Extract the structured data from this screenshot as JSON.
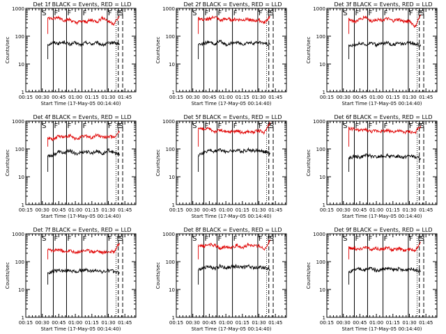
{
  "chart_data": [
    {
      "type": "line",
      "title": "Det 1f BLACK = Events, RED = LLD",
      "xlabel": "Start Time (17-May-05 00:14:40)",
      "ylabel": "Counts/sec",
      "log_y": true,
      "ylim": [
        1,
        1000
      ],
      "xlim": [
        15,
        115
      ],
      "x_tick_labels": [
        "00:15",
        "00:30",
        "00:45",
        "01:00",
        "01:15",
        "01:30",
        "01:45"
      ],
      "y_tick_labels": [
        "1",
        "10",
        "100",
        "1000"
      ],
      "series": [
        {
          "name": "Events",
          "color": "#000000",
          "x": [
            35,
            40,
            45,
            50,
            55,
            60,
            65,
            70,
            75,
            80,
            85,
            90,
            95,
            100
          ],
          "y": [
            50,
            60,
            55,
            62,
            50,
            58,
            48,
            60,
            52,
            58,
            48,
            55,
            60,
            50
          ]
        },
        {
          "name": "LLD",
          "color": "#e00000",
          "x": [
            35,
            40,
            45,
            50,
            55,
            60,
            65,
            70,
            75,
            80,
            85,
            90,
            95,
            100
          ],
          "y": [
            450,
            420,
            480,
            370,
            400,
            300,
            340,
            330,
            380,
            330,
            470,
            340,
            280,
            500
          ]
        }
      ],
      "markers": [
        {
          "x": 29,
          "label": "S"
        },
        {
          "x": 40,
          "label": "F"
        },
        {
          "x": 52,
          "label": "F"
        },
        {
          "x": 66,
          "label": "F"
        },
        {
          "x": 89,
          "label": "F"
        },
        {
          "x": 97,
          "label": "E"
        },
        {
          "x": 99,
          "label": "S"
        }
      ]
    },
    {
      "type": "line",
      "title": "Det 2f BLACK = Events, RED = LLD",
      "xlabel": "Start Time (17-May-05 00:14:40)",
      "ylabel": "Counts/sec",
      "log_y": true,
      "ylim": [
        1,
        1000
      ],
      "xlim": [
        15,
        115
      ],
      "x_tick_labels": [
        "00:15",
        "00:30",
        "00:45",
        "01:00",
        "01:15",
        "01:30",
        "01:45"
      ],
      "y_tick_labels": [
        "1",
        "10",
        "100",
        "1000"
      ],
      "series": [
        {
          "name": "Events",
          "color": "#000000",
          "x": [
            35,
            40,
            45,
            50,
            55,
            60,
            65,
            70,
            75,
            80,
            85,
            90,
            95,
            100
          ],
          "y": [
            50,
            55,
            60,
            52,
            65,
            50,
            55,
            60,
            50,
            58,
            55,
            60,
            55,
            50
          ]
        },
        {
          "name": "LLD",
          "color": "#e00000",
          "x": [
            35,
            40,
            45,
            50,
            55,
            60,
            65,
            70,
            75,
            80,
            85,
            90,
            95,
            100
          ],
          "y": [
            450,
            380,
            420,
            500,
            360,
            420,
            390,
            400,
            380,
            420,
            350,
            380,
            300,
            500
          ]
        }
      ],
      "markers": [
        {
          "x": 29,
          "label": "S"
        },
        {
          "x": 40,
          "label": "F"
        },
        {
          "x": 52,
          "label": "F"
        },
        {
          "x": 66,
          "label": "F"
        },
        {
          "x": 89,
          "label": "F"
        },
        {
          "x": 97,
          "label": "E"
        },
        {
          "x": 99,
          "label": "S"
        }
      ]
    },
    {
      "type": "line",
      "title": "Det 3f BLACK = Events, RED = LLD",
      "xlabel": "Start Time (17-May-05 00:14:40)",
      "ylabel": "Counts/sec",
      "log_y": true,
      "ylim": [
        1,
        1000
      ],
      "xlim": [
        15,
        115
      ],
      "x_tick_labels": [
        "00:15",
        "00:30",
        "00:45",
        "01:00",
        "01:15",
        "01:30",
        "01:45"
      ],
      "y_tick_labels": [
        "1",
        "10",
        "100",
        "1000"
      ],
      "series": [
        {
          "name": "Events",
          "color": "#000000",
          "x": [
            35,
            40,
            45,
            50,
            55,
            60,
            65,
            70,
            75,
            80,
            85,
            90,
            95,
            100
          ],
          "y": [
            45,
            50,
            55,
            50,
            60,
            48,
            55,
            58,
            50,
            55,
            50,
            60,
            55,
            45
          ]
        },
        {
          "name": "LLD",
          "color": "#e00000",
          "x": [
            35,
            40,
            45,
            50,
            55,
            60,
            65,
            70,
            75,
            80,
            85,
            90,
            95,
            100
          ],
          "y": [
            420,
            330,
            400,
            500,
            350,
            400,
            380,
            420,
            350,
            400,
            330,
            360,
            220,
            550
          ]
        }
      ],
      "markers": [
        {
          "x": 29,
          "label": "S"
        },
        {
          "x": 40,
          "label": "F"
        },
        {
          "x": 52,
          "label": "F"
        },
        {
          "x": 66,
          "label": "F"
        },
        {
          "x": 89,
          "label": "F"
        },
        {
          "x": 97,
          "label": "E"
        },
        {
          "x": 99,
          "label": "S"
        }
      ]
    },
    {
      "type": "line",
      "title": "Det 4f BLACK = Events, RED = LLD",
      "xlabel": "Start Time (17-May-05 00:14:40)",
      "ylabel": "Counts/sec",
      "log_y": true,
      "ylim": [
        1,
        1000
      ],
      "xlim": [
        15,
        115
      ],
      "x_tick_labels": [
        "00:15",
        "00:30",
        "00:45",
        "01:00",
        "01:15",
        "01:30",
        "01:45"
      ],
      "y_tick_labels": [
        "1",
        "10",
        "100",
        "1000"
      ],
      "series": [
        {
          "name": "Events",
          "color": "#000000",
          "x": [
            35,
            40,
            45,
            50,
            55,
            60,
            65,
            70,
            75,
            80,
            85,
            90,
            95,
            100
          ],
          "y": [
            55,
            60,
            80,
            70,
            90,
            65,
            75,
            80,
            70,
            85,
            65,
            90,
            75,
            60
          ]
        },
        {
          "name": "LLD",
          "color": "#e00000",
          "x": [
            35,
            40,
            45,
            50,
            55,
            60,
            65,
            70,
            75,
            80,
            85,
            90,
            95,
            100
          ],
          "y": [
            250,
            220,
            300,
            260,
            300,
            220,
            260,
            300,
            240,
            320,
            250,
            280,
            260,
            400
          ]
        }
      ],
      "markers": [
        {
          "x": 29,
          "label": "S"
        },
        {
          "x": 40,
          "label": "F"
        },
        {
          "x": 52,
          "label": "F"
        },
        {
          "x": 66,
          "label": "F"
        },
        {
          "x": 89,
          "label": "F"
        },
        {
          "x": 97,
          "label": "E"
        },
        {
          "x": 99,
          "label": "S"
        }
      ]
    },
    {
      "type": "line",
      "title": "Det 5f BLACK = Events, RED = LLD",
      "xlabel": "Start Time (17-May-05 00:14:40)",
      "ylabel": "Counts/sec",
      "log_y": true,
      "ylim": [
        1,
        1000
      ],
      "xlim": [
        15,
        115
      ],
      "x_tick_labels": [
        "00:15",
        "00:30",
        "00:45",
        "01:00",
        "01:15",
        "01:30",
        "01:45"
      ],
      "y_tick_labels": [
        "1",
        "10",
        "100",
        "1000"
      ],
      "series": [
        {
          "name": "Events",
          "color": "#000000",
          "x": [
            35,
            40,
            45,
            50,
            55,
            60,
            65,
            70,
            75,
            80,
            85,
            90,
            95,
            100
          ],
          "y": [
            60,
            75,
            90,
            80,
            95,
            80,
            85,
            90,
            80,
            95,
            85,
            90,
            80,
            70
          ]
        },
        {
          "name": "LLD",
          "color": "#e00000",
          "x": [
            35,
            40,
            45,
            50,
            55,
            60,
            65,
            70,
            75,
            80,
            85,
            90,
            95,
            100
          ],
          "y": [
            550,
            500,
            520,
            420,
            480,
            400,
            420,
            450,
            380,
            420,
            400,
            450,
            380,
            900
          ]
        }
      ],
      "markers": [
        {
          "x": 29,
          "label": "S"
        },
        {
          "x": 40,
          "label": "F"
        },
        {
          "x": 52,
          "label": "F"
        },
        {
          "x": 66,
          "label": "F"
        },
        {
          "x": 89,
          "label": "F"
        },
        {
          "x": 97,
          "label": "E"
        },
        {
          "x": 99,
          "label": "S"
        }
      ]
    },
    {
      "type": "line",
      "title": "Det 6f BLACK = Events, RED = LLD",
      "xlabel": "Start Time (17-May-05 00:14:40)",
      "ylabel": "Counts/sec",
      "log_y": true,
      "ylim": [
        1,
        1000
      ],
      "xlim": [
        15,
        115
      ],
      "x_tick_labels": [
        "00:15",
        "00:30",
        "00:45",
        "01:00",
        "01:15",
        "01:30",
        "01:45"
      ],
      "y_tick_labels": [
        "1",
        "10",
        "100",
        "1000"
      ],
      "series": [
        {
          "name": "Events",
          "color": "#000000",
          "x": [
            35,
            40,
            45,
            50,
            55,
            60,
            65,
            70,
            75,
            80,
            85,
            90,
            95,
            100
          ],
          "y": [
            45,
            55,
            50,
            60,
            55,
            50,
            55,
            58,
            52,
            55,
            50,
            58,
            50,
            45
          ]
        },
        {
          "name": "LLD",
          "color": "#e00000",
          "x": [
            35,
            40,
            45,
            50,
            55,
            60,
            65,
            70,
            75,
            80,
            85,
            90,
            95,
            100
          ],
          "y": [
            550,
            500,
            450,
            500,
            420,
            450,
            430,
            460,
            420,
            450,
            400,
            420,
            380,
            650
          ]
        }
      ],
      "markers": [
        {
          "x": 29,
          "label": "S"
        },
        {
          "x": 40,
          "label": "F"
        },
        {
          "x": 52,
          "label": "F"
        },
        {
          "x": 66,
          "label": "F"
        },
        {
          "x": 89,
          "label": "F"
        },
        {
          "x": 97,
          "label": "E"
        },
        {
          "x": 99,
          "label": "S"
        }
      ]
    },
    {
      "type": "line",
      "title": "Det 7f BLACK = Events, RED = LLD",
      "xlabel": "Start Time (17-May-05 00:14:40)",
      "ylabel": "Counts/sec",
      "log_y": true,
      "ylim": [
        1,
        1000
      ],
      "xlim": [
        15,
        115
      ],
      "x_tick_labels": [
        "00:15",
        "00:30",
        "00:45",
        "01:00",
        "01:15",
        "01:30",
        "01:45"
      ],
      "y_tick_labels": [
        "1",
        "10",
        "100",
        "1000"
      ],
      "series": [
        {
          "name": "Events",
          "color": "#000000",
          "x": [
            35,
            40,
            45,
            50,
            55,
            60,
            65,
            70,
            75,
            80,
            85,
            90,
            95,
            100
          ],
          "y": [
            40,
            45,
            50,
            45,
            50,
            42,
            48,
            50,
            45,
            50,
            42,
            48,
            45,
            40
          ]
        },
        {
          "name": "LLD",
          "color": "#e00000",
          "x": [
            35,
            40,
            45,
            50,
            55,
            60,
            65,
            70,
            75,
            80,
            85,
            90,
            95,
            100
          ],
          "y": [
            260,
            240,
            280,
            220,
            260,
            200,
            240,
            260,
            220,
            250,
            210,
            230,
            230,
            450
          ]
        }
      ],
      "markers": [
        {
          "x": 29,
          "label": "S"
        },
        {
          "x": 40,
          "label": "F"
        },
        {
          "x": 52,
          "label": "F"
        },
        {
          "x": 66,
          "label": "F"
        },
        {
          "x": 89,
          "label": "F"
        },
        {
          "x": 97,
          "label": "E"
        },
        {
          "x": 99,
          "label": "S"
        }
      ]
    },
    {
      "type": "line",
      "title": "Det 8f BLACK = Events, RED = LLD",
      "xlabel": "Start Time (17-May-05 00:14:40)",
      "ylabel": "Counts/sec",
      "log_y": true,
      "ylim": [
        1,
        1000
      ],
      "xlim": [
        15,
        115
      ],
      "x_tick_labels": [
        "00:15",
        "00:30",
        "00:45",
        "01:00",
        "01:15",
        "01:30",
        "01:45"
      ],
      "y_tick_labels": [
        "1",
        "10",
        "100",
        "1000"
      ],
      "series": [
        {
          "name": "Events",
          "color": "#000000",
          "x": [
            35,
            40,
            45,
            50,
            55,
            60,
            65,
            70,
            75,
            80,
            85,
            90,
            95,
            100
          ],
          "y": [
            50,
            60,
            65,
            55,
            70,
            60,
            65,
            70,
            60,
            70,
            60,
            65,
            60,
            50
          ]
        },
        {
          "name": "LLD",
          "color": "#e00000",
          "x": [
            35,
            40,
            45,
            50,
            55,
            60,
            65,
            70,
            75,
            80,
            85,
            90,
            95,
            100
          ],
          "y": [
            400,
            350,
            420,
            380,
            300,
            350,
            330,
            380,
            320,
            400,
            360,
            380,
            260,
            600
          ]
        }
      ],
      "markers": [
        {
          "x": 29,
          "label": "S"
        },
        {
          "x": 40,
          "label": "F"
        },
        {
          "x": 52,
          "label": "F"
        },
        {
          "x": 66,
          "label": "F"
        },
        {
          "x": 89,
          "label": "F"
        },
        {
          "x": 97,
          "label": "E"
        },
        {
          "x": 99,
          "label": "S"
        }
      ]
    },
    {
      "type": "line",
      "title": "Det 9f BLACK = Events, RED = LLD",
      "xlabel": "Start Time (17-May-05 00:14:40)",
      "ylabel": "Counts/sec",
      "log_y": true,
      "ylim": [
        1,
        1000
      ],
      "xlim": [
        15,
        115
      ],
      "x_tick_labels": [
        "00:15",
        "00:30",
        "00:45",
        "01:00",
        "01:15",
        "01:30",
        "01:45"
      ],
      "y_tick_labels": [
        "1",
        "10",
        "100",
        "1000"
      ],
      "series": [
        {
          "name": "Events",
          "color": "#000000",
          "x": [
            35,
            40,
            45,
            50,
            55,
            60,
            65,
            70,
            75,
            80,
            85,
            90,
            95,
            100
          ],
          "y": [
            40,
            50,
            55,
            50,
            60,
            48,
            52,
            58,
            50,
            55,
            48,
            55,
            52,
            45
          ]
        },
        {
          "name": "LLD",
          "color": "#e00000",
          "x": [
            35,
            40,
            45,
            50,
            55,
            60,
            65,
            70,
            75,
            80,
            85,
            90,
            95,
            100
          ],
          "y": [
            320,
            300,
            280,
            350,
            260,
            300,
            280,
            320,
            260,
            300,
            250,
            280,
            250,
            500
          ]
        }
      ],
      "markers": [
        {
          "x": 29,
          "label": "S"
        },
        {
          "x": 40,
          "label": "F"
        },
        {
          "x": 52,
          "label": "F"
        },
        {
          "x": 66,
          "label": "F"
        },
        {
          "x": 89,
          "label": "F"
        },
        {
          "x": 97,
          "label": "E"
        },
        {
          "x": 99,
          "label": "S"
        }
      ]
    }
  ]
}
